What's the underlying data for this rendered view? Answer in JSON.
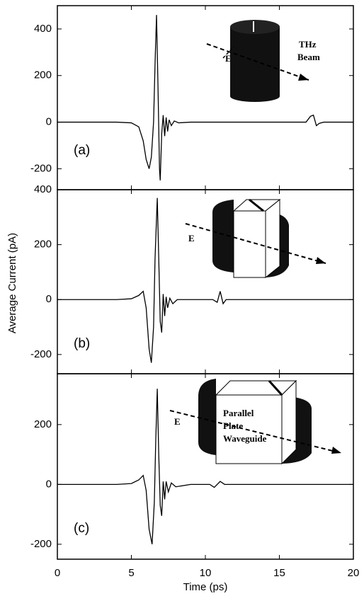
{
  "chart_data": [
    {
      "type": "line",
      "label": "(a)",
      "inset_labels": [
        "E",
        "THz",
        "Beam"
      ],
      "x": [
        0,
        4,
        5,
        5.5,
        5.8,
        6.0,
        6.2,
        6.35,
        6.5,
        6.6,
        6.7,
        6.8,
        6.9,
        6.95,
        7.05,
        7.15,
        7.25,
        7.35,
        7.45,
        7.55,
        7.7,
        7.9,
        8.2,
        9,
        12,
        16.8,
        17.1,
        17.3,
        17.5,
        17.7,
        18,
        20
      ],
      "series": [
        {
          "color": "#000000",
          "values": [
            0,
            0,
            -3,
            -20,
            -80,
            -160,
            -200,
            -150,
            0,
            250,
            460,
            150,
            -200,
            -250,
            -50,
            30,
            -60,
            20,
            -40,
            10,
            -15,
            5,
            -3,
            0,
            0,
            0,
            25,
            30,
            -15,
            -5,
            0,
            0
          ]
        }
      ],
      "xlim": [
        0,
        20
      ],
      "xticks": [
        0,
        5,
        10,
        15,
        20
      ],
      "ylim": [
        -290,
        500
      ],
      "yticks": [
        -200,
        0,
        200,
        400
      ]
    },
    {
      "type": "line",
      "label": "(b)",
      "inset_labels": [
        "E"
      ],
      "ylabel": "Average Current (pA)",
      "x": [
        0,
        4,
        5,
        5.5,
        5.8,
        6.0,
        6.2,
        6.35,
        6.5,
        6.6,
        6.75,
        6.85,
        6.95,
        7.05,
        7.15,
        7.25,
        7.35,
        7.45,
        7.6,
        7.8,
        8.1,
        9,
        10.5,
        10.8,
        11.0,
        11.2,
        11.4,
        12,
        20
      ],
      "series": [
        {
          "color": "#000000",
          "values": [
            0,
            0,
            3,
            15,
            30,
            -30,
            -180,
            -230,
            -100,
            150,
            370,
            150,
            -80,
            -120,
            20,
            -60,
            10,
            -30,
            5,
            -15,
            0,
            0,
            0,
            -10,
            30,
            -15,
            0,
            0,
            0
          ]
        }
      ],
      "xlim": [
        0,
        20
      ],
      "xticks": [
        0,
        5,
        10,
        15,
        20
      ],
      "ylim": [
        -270,
        400
      ],
      "yticks": [
        -200,
        0,
        200,
        400
      ]
    },
    {
      "type": "line",
      "label": "(c)",
      "inset_labels": [
        "E",
        "Parallel",
        "Plate",
        "Waveguide"
      ],
      "xlabel": "Time (ps)",
      "x": [
        0,
        4,
        5,
        5.5,
        5.8,
        6.0,
        6.2,
        6.4,
        6.55,
        6.65,
        6.75,
        6.85,
        6.95,
        7.05,
        7.15,
        7.25,
        7.35,
        7.5,
        7.7,
        8.0,
        9,
        10.3,
        10.6,
        11.0,
        11.3,
        12,
        20
      ],
      "series": [
        {
          "color": "#000000",
          "values": [
            0,
            0,
            3,
            15,
            30,
            -20,
            -150,
            -200,
            -60,
            150,
            320,
            100,
            -70,
            -105,
            10,
            -50,
            10,
            -25,
            5,
            -8,
            0,
            0,
            -10,
            10,
            0,
            0,
            0
          ]
        }
      ],
      "xlim": [
        0,
        20
      ],
      "xticks": [
        0,
        5,
        10,
        15,
        20
      ],
      "ylim": [
        -250,
        370
      ],
      "yticks": [
        -200,
        0,
        200
      ]
    }
  ]
}
